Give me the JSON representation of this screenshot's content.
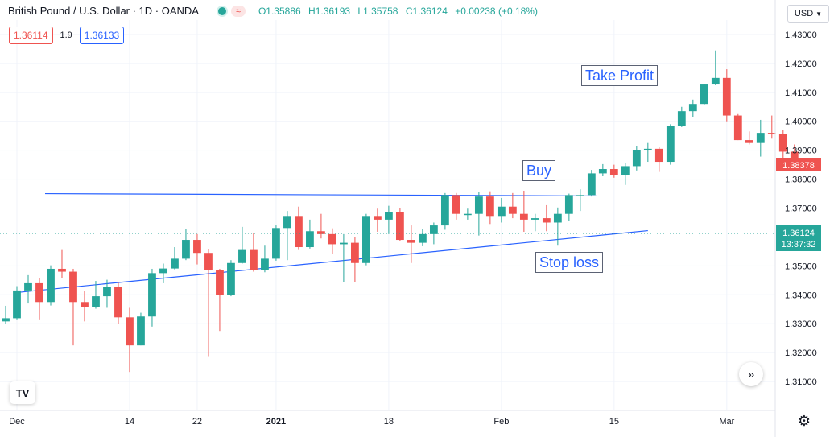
{
  "header": {
    "symbol": "British Pound / U.S. Dollar · 1D · OANDA",
    "open": "O1.35886",
    "high": "H1.36193",
    "low": "L1.35758",
    "close": "C1.36124",
    "change": "+0.00238 (+0.18%)"
  },
  "quote": {
    "sell": "1.36114",
    "spread": "1.9",
    "buy": "1.36133"
  },
  "currency": "USD",
  "annotations": {
    "take_profit": "Take Profit",
    "buy": "Buy",
    "stop_loss": "Stop loss"
  },
  "price_tags": {
    "red_price": "1.38378",
    "last_price": "1.36124",
    "countdown": "13:37:32"
  },
  "colors": {
    "up": "#26a69a",
    "down": "#ef5350",
    "trendline": "#2962ff",
    "grid": "#f0f3fa",
    "text": "#131722"
  },
  "icons": {
    "scroll_right": "double-chevron-right-icon",
    "settings": "gear-icon",
    "logo": "tradingview-logo-icon",
    "currency_toggle": "chevron-down-icon"
  },
  "chart_data": {
    "type": "candlestick",
    "y_ticks": [
      "1.43000",
      "1.42000",
      "1.41000",
      "1.40000",
      "1.39000",
      "1.38000",
      "1.37000",
      "1.36000",
      "1.35000",
      "1.34000",
      "1.33000",
      "1.32000",
      "1.31000"
    ],
    "x_ticks": [
      {
        "label": "Dec",
        "index": 1
      },
      {
        "label": "14",
        "index": 11
      },
      {
        "label": "22",
        "index": 17
      },
      {
        "label": "2021",
        "index": 24
      },
      {
        "label": "18",
        "index": 34
      },
      {
        "label": "Feb",
        "index": 44
      },
      {
        "label": "15",
        "index": 54
      },
      {
        "label": "Mar",
        "index": 64
      }
    ],
    "ylim": [
      1.3,
      1.435
    ],
    "x_range": [
      -0.5,
      68.3
    ],
    "candles": [
      [
        1.3308,
        1.3362,
        1.33,
        1.3319
      ],
      [
        1.3319,
        1.343,
        1.3315,
        1.3415
      ],
      [
        1.3415,
        1.3468,
        1.337,
        1.344
      ],
      [
        1.344,
        1.3458,
        1.3315,
        1.3375
      ],
      [
        1.3375,
        1.3502,
        1.3363,
        1.349
      ],
      [
        1.349,
        1.3555,
        1.3457,
        1.348
      ],
      [
        1.348,
        1.349,
        1.3225,
        1.3375
      ],
      [
        1.3375,
        1.3412,
        1.3308,
        1.3358
      ],
      [
        1.3358,
        1.3448,
        1.3352,
        1.3395
      ],
      [
        1.3395,
        1.3452,
        1.3355,
        1.3428
      ],
      [
        1.3428,
        1.3442,
        1.3298,
        1.3322
      ],
      [
        1.3322,
        1.3355,
        1.3133,
        1.3225
      ],
      [
        1.3225,
        1.3338,
        1.3225,
        1.3325
      ],
      [
        1.3325,
        1.349,
        1.329,
        1.3475
      ],
      [
        1.3475,
        1.3508,
        1.344,
        1.3491
      ],
      [
        1.3491,
        1.3565,
        1.3488,
        1.3525
      ],
      [
        1.3525,
        1.3628,
        1.352,
        1.359
      ],
      [
        1.359,
        1.361,
        1.3505,
        1.3545
      ],
      [
        1.3545,
        1.3558,
        1.3188,
        1.3485
      ],
      [
        1.3485,
        1.349,
        1.3275,
        1.34
      ],
      [
        1.34,
        1.352,
        1.3395,
        1.351
      ],
      [
        1.351,
        1.3635,
        1.3508,
        1.3555
      ],
      [
        1.3555,
        1.3615,
        1.348,
        1.3485
      ],
      [
        1.3485,
        1.357,
        1.3478,
        1.3525
      ],
      [
        1.3525,
        1.364,
        1.3518,
        1.3631
      ],
      [
        1.3631,
        1.369,
        1.352,
        1.367
      ],
      [
        1.367,
        1.3705,
        1.3555,
        1.3565
      ],
      [
        1.3565,
        1.366,
        1.356,
        1.362
      ],
      [
        1.362,
        1.368,
        1.3595,
        1.361
      ],
      [
        1.361,
        1.363,
        1.354,
        1.3575
      ],
      [
        1.3575,
        1.361,
        1.3445,
        1.358
      ],
      [
        1.358,
        1.36,
        1.3445,
        1.351
      ],
      [
        1.351,
        1.368,
        1.3502,
        1.367
      ],
      [
        1.367,
        1.3698,
        1.3618,
        1.366
      ],
      [
        1.366,
        1.3708,
        1.361,
        1.3685
      ],
      [
        1.3685,
        1.37,
        1.3585,
        1.359
      ],
      [
        1.359,
        1.364,
        1.351,
        1.358
      ],
      [
        1.358,
        1.3628,
        1.3568,
        1.361
      ],
      [
        1.361,
        1.365,
        1.3575,
        1.364
      ],
      [
        1.364,
        1.3752,
        1.3625,
        1.3745
      ],
      [
        1.3745,
        1.3752,
        1.366,
        1.368
      ],
      [
        1.368,
        1.3698,
        1.366,
        1.368
      ],
      [
        1.368,
        1.3755,
        1.3605,
        1.374
      ],
      [
        1.374,
        1.3758,
        1.3645,
        1.367
      ],
      [
        1.367,
        1.3735,
        1.365,
        1.3705
      ],
      [
        1.3705,
        1.3752,
        1.3665,
        1.368
      ],
      [
        1.368,
        1.376,
        1.3618,
        1.366
      ],
      [
        1.366,
        1.368,
        1.362,
        1.3665
      ],
      [
        1.3665,
        1.371,
        1.362,
        1.365
      ],
      [
        1.365,
        1.3702,
        1.357,
        1.368
      ],
      [
        1.368,
        1.375,
        1.3655,
        1.3745
      ],
      [
        1.3745,
        1.3765,
        1.369,
        1.3745
      ],
      [
        1.3745,
        1.3832,
        1.374,
        1.382
      ],
      [
        1.382,
        1.3852,
        1.381,
        1.3835
      ],
      [
        1.3835,
        1.385,
        1.3805,
        1.3815
      ],
      [
        1.3815,
        1.3855,
        1.378,
        1.3845
      ],
      [
        1.3845,
        1.3915,
        1.383,
        1.39
      ],
      [
        1.39,
        1.3925,
        1.386,
        1.3905
      ],
      [
        1.3905,
        1.391,
        1.3825,
        1.386
      ],
      [
        1.386,
        1.399,
        1.385,
        1.3985
      ],
      [
        1.3985,
        1.405,
        1.398,
        1.4035
      ],
      [
        1.4035,
        1.4075,
        1.4015,
        1.406
      ],
      [
        1.406,
        1.413,
        1.4055,
        1.413
      ],
      [
        1.413,
        1.4245,
        1.4125,
        1.415
      ],
      [
        1.415,
        1.418,
        1.4,
        1.402
      ],
      [
        1.402,
        1.4025,
        1.3935,
        1.3935
      ],
      [
        1.3935,
        1.3965,
        1.392,
        1.3925
      ],
      [
        1.3925,
        1.4005,
        1.3878,
        1.396
      ],
      [
        1.396,
        1.402,
        1.394,
        1.3955
      ],
      [
        1.3955,
        1.397,
        1.387,
        1.3895
      ],
      [
        1.3895,
        1.392,
        1.3835,
        1.3838
      ]
    ],
    "trendlines": [
      {
        "from": [
          3.5,
          1.375
        ],
        "to": [
          52.5,
          1.3742
        ]
      },
      {
        "from": [
          1.0,
          1.3408
        ],
        "to": [
          57.0,
          1.3622
        ]
      }
    ],
    "last_price_line": 1.36124
  }
}
